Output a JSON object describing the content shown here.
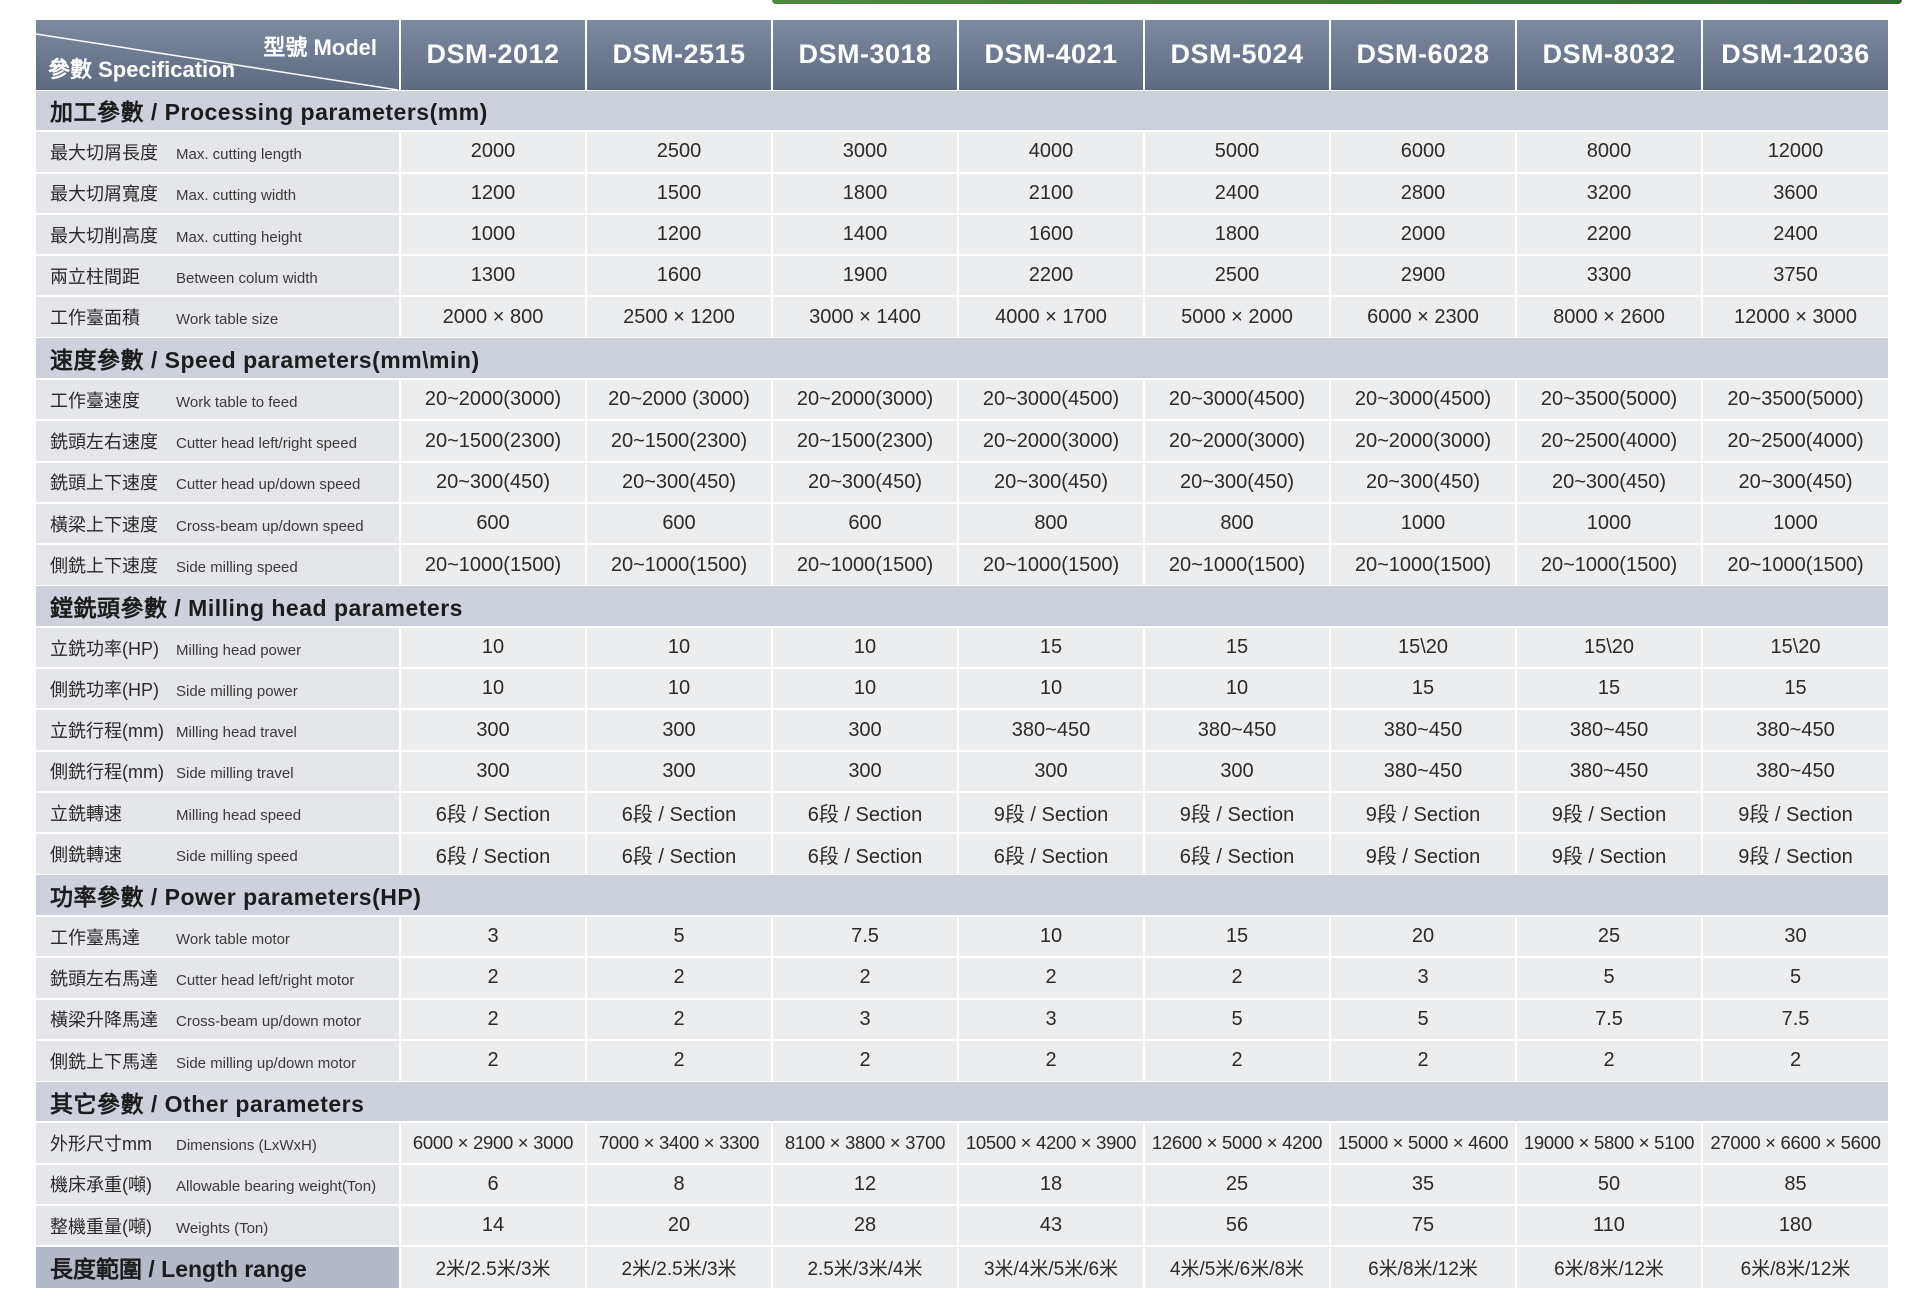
{
  "header": {
    "corner_model": "型號 Model",
    "corner_spec": "參數 Specification",
    "models": [
      "DSM-2012",
      "DSM-2515",
      "DSM-3018",
      "DSM-4021",
      "DSM-5024",
      "DSM-6028",
      "DSM-8032",
      "DSM-12036"
    ]
  },
  "sections": [
    {
      "title": "加工參數 / Processing parameters(mm)",
      "rows": [
        {
          "cn": "最大切屑長度",
          "en": "Max. cutting length",
          "values": [
            "2000",
            "2500",
            "3000",
            "4000",
            "5000",
            "6000",
            "8000",
            "12000"
          ]
        },
        {
          "cn": "最大切屑寬度",
          "en": "Max. cutting width",
          "values": [
            "1200",
            "1500",
            "1800",
            "2100",
            "2400",
            "2800",
            "3200",
            "3600"
          ]
        },
        {
          "cn": "最大切削高度",
          "en": "Max. cutting height",
          "values": [
            "1000",
            "1200",
            "1400",
            "1600",
            "1800",
            "2000",
            "2200",
            "2400"
          ]
        },
        {
          "cn": "兩立柱間距",
          "en": "Between colum width",
          "values": [
            "1300",
            "1600",
            "1900",
            "2200",
            "2500",
            "2900",
            "3300",
            "3750"
          ]
        },
        {
          "cn": "工作臺面積",
          "en": "Work table size",
          "values": [
            "2000 × 800",
            "2500 × 1200",
            "3000 × 1400",
            "4000 × 1700",
            "5000 × 2000",
            "6000 × 2300",
            "8000 × 2600",
            "12000 × 3000"
          ]
        }
      ]
    },
    {
      "title": "速度參數 / Speed parameters(mm\\min)",
      "rows": [
        {
          "cn": "工作臺速度",
          "en": "Work table to feed",
          "values": [
            "20~2000(3000)",
            "20~2000 (3000)",
            "20~2000(3000)",
            "20~3000(4500)",
            "20~3000(4500)",
            "20~3000(4500)",
            "20~3500(5000)",
            "20~3500(5000)"
          ]
        },
        {
          "cn": "銑頭左右速度",
          "en": "Cutter head left/right speed",
          "values": [
            "20~1500(2300)",
            "20~1500(2300)",
            "20~1500(2300)",
            "20~2000(3000)",
            "20~2000(3000)",
            "20~2000(3000)",
            "20~2500(4000)",
            "20~2500(4000)"
          ]
        },
        {
          "cn": "銑頭上下速度",
          "en": "Cutter head up/down speed",
          "values": [
            "20~300(450)",
            "20~300(450)",
            "20~300(450)",
            "20~300(450)",
            "20~300(450)",
            "20~300(450)",
            "20~300(450)",
            "20~300(450)"
          ]
        },
        {
          "cn": "橫梁上下速度",
          "en": "Cross-beam up/down speed",
          "values": [
            "600",
            "600",
            "600",
            "800",
            "800",
            "1000",
            "1000",
            "1000"
          ]
        },
        {
          "cn": "側銑上下速度",
          "en": "Side milling speed",
          "values": [
            "20~1000(1500)",
            "20~1000(1500)",
            "20~1000(1500)",
            "20~1000(1500)",
            "20~1000(1500)",
            "20~1000(1500)",
            "20~1000(1500)",
            "20~1000(1500)"
          ]
        }
      ]
    },
    {
      "title": "鏜銑頭參數 / Milling head parameters",
      "rows": [
        {
          "cn": "立銑功率(HP)",
          "en": "Milling head power",
          "values": [
            "10",
            "10",
            "10",
            "15",
            "15",
            "15\\20",
            "15\\20",
            "15\\20"
          ]
        },
        {
          "cn": "側銑功率(HP)",
          "en": "Side milling power",
          "values": [
            "10",
            "10",
            "10",
            "10",
            "10",
            "15",
            "15",
            "15"
          ]
        },
        {
          "cn": "立銑行程(mm)",
          "en": "Milling head travel",
          "values": [
            "300",
            "300",
            "300",
            "380~450",
            "380~450",
            "380~450",
            "380~450",
            "380~450"
          ]
        },
        {
          "cn": "側銑行程(mm)",
          "en": "Side milling travel",
          "values": [
            "300",
            "300",
            "300",
            "300",
            "300",
            "380~450",
            "380~450",
            "380~450"
          ]
        },
        {
          "cn": "立銑轉速",
          "en": "Milling head speed",
          "values": [
            "6段 / Section",
            "6段 / Section",
            "6段 / Section",
            "9段 / Section",
            "9段 / Section",
            "9段 / Section",
            "9段 / Section",
            "9段 / Section"
          ]
        },
        {
          "cn": "側銑轉速",
          "en": "Side milling speed",
          "values": [
            "6段 / Section",
            "6段 / Section",
            "6段 / Section",
            "6段 / Section",
            "6段 / Section",
            "9段 / Section",
            "9段 / Section",
            "9段 / Section"
          ]
        }
      ]
    },
    {
      "title": "功率參數  / Power parameters(HP)",
      "rows": [
        {
          "cn": "工作臺馬達",
          "en": "Work table motor",
          "values": [
            "3",
            "5",
            "7.5",
            "10",
            "15",
            "20",
            "25",
            "30"
          ]
        },
        {
          "cn": "銑頭左右馬達",
          "en": "Cutter head left/right motor",
          "values": [
            "2",
            "2",
            "2",
            "2",
            "2",
            "3",
            "5",
            "5"
          ]
        },
        {
          "cn": "橫梁升降馬達",
          "en": "Cross-beam up/down motor",
          "values": [
            "2",
            "2",
            "3",
            "3",
            "5",
            "5",
            "7.5",
            "7.5"
          ]
        },
        {
          "cn": "側銑上下馬達",
          "en": "Side milling up/down motor",
          "values": [
            "2",
            "2",
            "2",
            "2",
            "2",
            "2",
            "2",
            "2"
          ]
        }
      ]
    },
    {
      "title": "其它參數  / Other parameters",
      "rows": [
        {
          "cn": "外形尺寸mm",
          "en": "Dimensions (LxWxH)",
          "values": [
            "6000 × 2900 × 3000",
            "7000 × 3400 × 3300",
            "8100 × 3800 × 3700",
            "10500 × 4200 × 3900",
            "12600 × 5000 × 4200",
            "15000 × 5000 × 4600",
            "19000 × 5800 × 5100",
            "27000 × 6600 × 5600"
          ]
        },
        {
          "cn": "機床承重(噸)",
          "en": "Allowable bearing weight(Ton)",
          "values": [
            "6",
            "8",
            "12",
            "18",
            "25",
            "35",
            "50",
            "85"
          ]
        },
        {
          "cn": "整機重量(噸)",
          "en": "Weights (Ton)",
          "values": [
            "14",
            "20",
            "28",
            "43",
            "56",
            "75",
            "110",
            "180"
          ]
        }
      ]
    }
  ],
  "length_range": {
    "label": "長度範圍  / Length range",
    "values": [
      "2米/2.5米/3米",
      "2米/2.5米/3米",
      "2.5米/3米/4米",
      "3米/4米/5米/6米",
      "4米/5米/6米/8米",
      "6米/8米/12米",
      "6米/8米/12米",
      "6米/8米/12米"
    ]
  },
  "colors": {
    "header_bg": "#6d7a91",
    "section_bg": "#cdd1db",
    "label_bg": "#e5e6e9",
    "cell_bg": "#ecedef",
    "accent_line": "#3f7d33"
  }
}
